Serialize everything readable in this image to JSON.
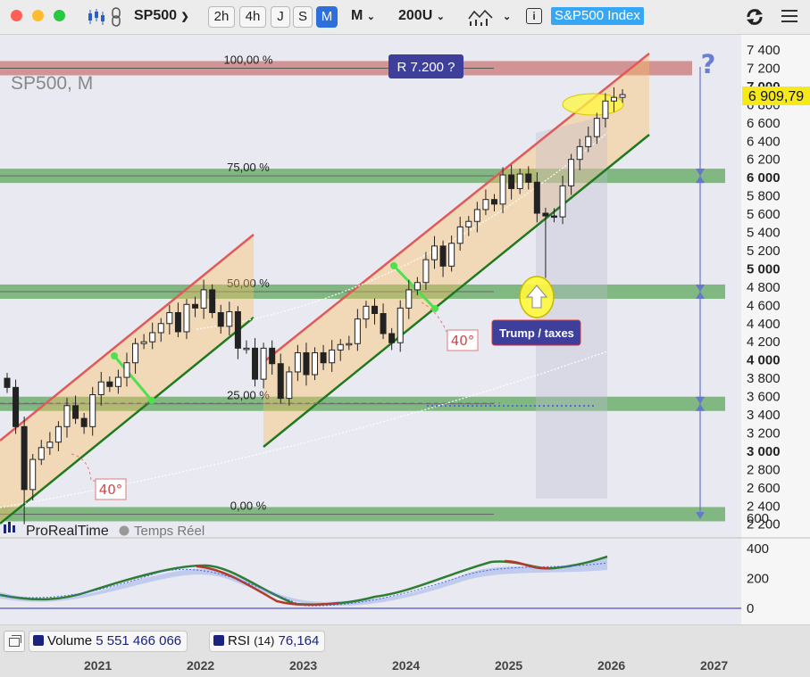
{
  "toolbar": {
    "symbol": "SP500",
    "timeframes": [
      "2h",
      "4h",
      "J",
      "S",
      "M"
    ],
    "active_timeframe": "M",
    "period_menu": "M",
    "bars_menu": "200U",
    "index_badge": "S&P500 Index",
    "colors": {
      "close": "#ff5f57",
      "minimize": "#febc2e",
      "zoom": "#28c840",
      "active": "#2f6fdc",
      "badge": "#35a7f5"
    }
  },
  "chart": {
    "watermark": "SP500, M",
    "last_price": "6 909,79",
    "fib_levels": [
      "100,00 %",
      "75,00 %",
      "50,00 %",
      "25,00 %",
      "0,00 %"
    ],
    "resistance_label": "R  7.200 ?",
    "question_mark": "?",
    "annotation": "Trump / taxes",
    "angle_labels": [
      "40°",
      "40°"
    ],
    "branding": "ProRealTime",
    "realtime_label": "Temps Réel"
  },
  "chart_data": {
    "type": "candlestick",
    "title": "SP500, M",
    "y_ticks": [
      "7 400",
      "7 200",
      "7 000",
      "6 800",
      "6 600",
      "6 400",
      "6 200",
      "6 000",
      "5 800",
      "5 600",
      "5 400",
      "5 200",
      "5 000",
      "4 800",
      "4 600",
      "4 400",
      "4 200",
      "4 000",
      "3 800",
      "3 600",
      "3 400",
      "3 200",
      "3 000",
      "2 800",
      "2 600",
      "2 400",
      "2 200"
    ],
    "bold_ticks": [
      "7 000",
      "6 000",
      "5 000",
      "4 000",
      "3 000"
    ],
    "x_ticks": [
      "2021",
      "2022",
      "2023",
      "2024",
      "2025",
      "2026",
      "2027"
    ],
    "ylim": [
      2150,
      7500
    ],
    "monthly_closes": [
      3700,
      3270,
      2580,
      2910,
      3040,
      3100,
      3270,
      3500,
      3360,
      3270,
      3620,
      3760,
      3710,
      3810,
      3970,
      4180,
      4200,
      4300,
      4400,
      4520,
      4310,
      4610,
      4570,
      4770,
      4520,
      4370,
      4530,
      4130,
      4130,
      3790,
      4130,
      3960,
      3580,
      3870,
      4080,
      3840,
      4080,
      3970,
      4110,
      4170,
      4180,
      4450,
      4590,
      4510,
      4290,
      4190,
      4570,
      4770,
      4850,
      5100,
      5250,
      5030,
      5280,
      5460,
      5520,
      5650,
      5760,
      5710,
      6030,
      5880,
      6040,
      5950,
      5610,
      5580,
      5570,
      5910,
      6200,
      6340,
      6450,
      6650,
      6840,
      6880,
      6910
    ],
    "fibonacci_retracement": [
      {
        "level": "100,00 %",
        "value": 7200
      },
      {
        "level": "75,00 %",
        "value": 6020
      },
      {
        "level": "50,00 %",
        "value": 4750
      },
      {
        "level": "25,00 %",
        "value": 3520
      },
      {
        "level": "0,00 %",
        "value": 2310
      }
    ],
    "rsi": {
      "name": "RSI",
      "period": 14,
      "value": 76.164,
      "ticks": [
        "600",
        "400",
        "200",
        "0"
      ]
    },
    "volume": {
      "name": "Volume",
      "value": "5 551 466 066"
    }
  },
  "footer": {
    "volume_label": "Volume",
    "volume_value": "5 551 466 066",
    "rsi_label": "RSI",
    "rsi_period": "(14)",
    "rsi_value": "76,164",
    "years": [
      "2021",
      "2022",
      "2023",
      "2024",
      "2025",
      "2026",
      "2027"
    ]
  }
}
